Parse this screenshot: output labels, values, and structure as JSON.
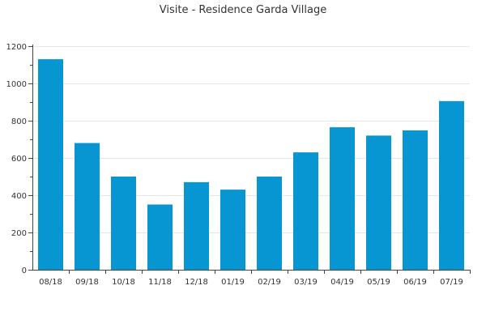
{
  "chart_data": {
    "type": "bar",
    "title": "Visite - Residence Garda Village",
    "xlabel": "",
    "ylabel": "",
    "categories": [
      "08/18",
      "09/18",
      "10/18",
      "11/18",
      "12/18",
      "01/19",
      "02/19",
      "03/19",
      "04/19",
      "05/19",
      "06/19",
      "07/19"
    ],
    "values": [
      1130,
      680,
      500,
      350,
      470,
      430,
      500,
      630,
      765,
      720,
      748,
      905
    ],
    "ylim": [
      0,
      1200
    ],
    "yticks": [
      0,
      200,
      400,
      600,
      800,
      1000,
      1200
    ],
    "grid": true,
    "legend": "none",
    "bar_color": "#0796d2"
  }
}
